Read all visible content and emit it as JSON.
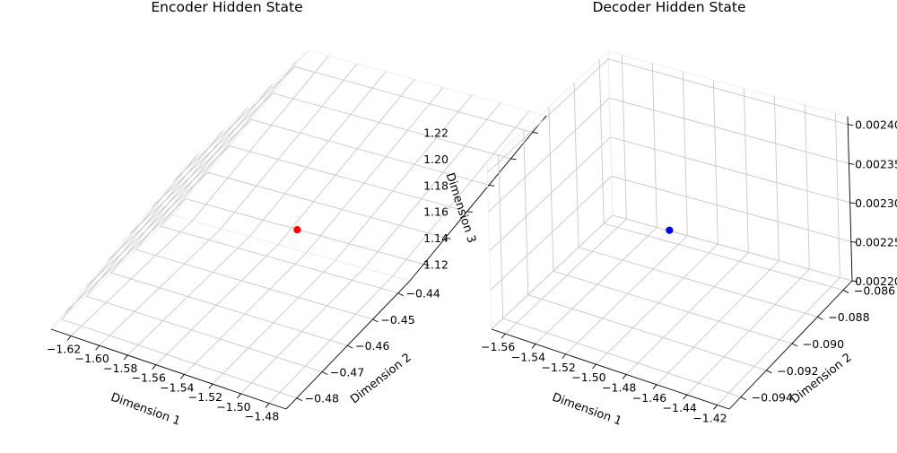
{
  "chart_data": [
    {
      "type": "scatter",
      "projection": "3d",
      "title": "Encoder Hidden State",
      "xlabel": "Dimension 1",
      "ylabel": "Dimension 2",
      "zlabel": "Dimension 3",
      "xlim": [
        -1.634,
        -1.468
      ],
      "ylim": [
        -0.4842,
        -0.4353
      ],
      "zlim": [
        1.1075,
        1.2325
      ],
      "xticks": [
        -1.62,
        -1.6,
        -1.58,
        -1.56,
        -1.54,
        -1.52,
        -1.5,
        -1.48
      ],
      "xtick_labels": [
        "−1.62",
        "−1.60",
        "−1.58",
        "−1.56",
        "−1.54",
        "−1.52",
        "−1.50",
        "−1.48"
      ],
      "yticks": [
        -0.48,
        -0.47,
        -0.46,
        -0.45,
        -0.44
      ],
      "ytick_labels": [
        "−0.48",
        "−0.47",
        "−0.46",
        "−0.45",
        "−0.44"
      ],
      "zticks": [
        1.12,
        1.14,
        1.16,
        1.18,
        1.2,
        1.22
      ],
      "ztick_labels": [
        "1.12",
        "1.14",
        "1.16",
        "1.18",
        "1.20",
        "1.22"
      ],
      "grid": true,
      "points": [
        {
          "x": -1.551,
          "y": -0.4598,
          "z": 1.17
        }
      ],
      "color": "#ff0000"
    },
    {
      "type": "scatter",
      "projection": "3d",
      "title": "Decoder Hidden State",
      "xlabel": "Dimension 1",
      "ylabel": "Dimension 2",
      "zlabel": "",
      "xlim": [
        -1.569,
        -1.412
      ],
      "ylim": [
        -0.0949,
        -0.0853
      ],
      "zlim": [
        0.0022,
        0.00241
      ],
      "xticks": [
        -1.56,
        -1.54,
        -1.52,
        -1.5,
        -1.48,
        -1.46,
        -1.44,
        -1.42
      ],
      "xtick_labels": [
        "−1.56",
        "−1.54",
        "−1.52",
        "−1.50",
        "−1.48",
        "−1.46",
        "−1.44",
        "−1.42"
      ],
      "yticks": [
        -0.094,
        -0.092,
        -0.09,
        -0.088,
        -0.086
      ],
      "ytick_labels": [
        "−0.094",
        "−0.092",
        "−0.090",
        "−0.088",
        "−0.086"
      ],
      "zticks": [
        0.0022,
        0.00225,
        0.0023,
        0.00235,
        0.0024
      ],
      "ztick_labels": [
        "0.00220",
        "0.00225",
        "0.00230",
        "0.00235",
        "0.00240"
      ],
      "grid": true,
      "points": [
        {
          "x": -1.49,
          "y": -0.0901,
          "z": 0.002305
        }
      ],
      "color": "#0000ff"
    }
  ]
}
